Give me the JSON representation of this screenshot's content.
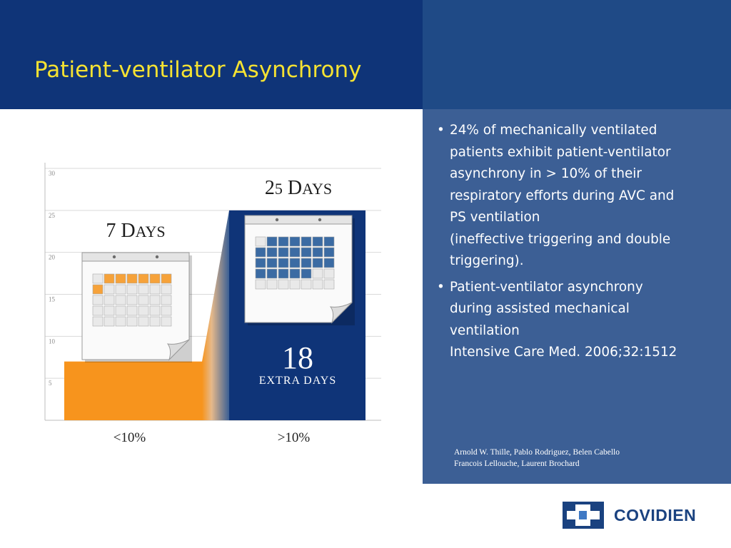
{
  "slide": {
    "title": "Patient-ventilator Asynchrony"
  },
  "bullets": [
    {
      "lines": [
        "24% of mechanically ventilated",
        "patients exhibit patient-ventilator",
        "asynchrony in > 10% of their",
        "respiratory efforts during AVC and",
        "PS ventilation",
        "(ineffective triggering and double",
        "triggering)."
      ]
    },
    {
      "lines": [
        "Patient-ventilator asynchrony",
        "during assisted mechanical",
        "ventilation",
        "Intensive Care Med. 2006;32:1512"
      ]
    }
  ],
  "citation": {
    "line1": "Arnold W. Thille, Pablo Rodriguez, Belen Cabello",
    "line2": "Francois Lellouche, Laurent Brochard"
  },
  "logo": {
    "text": "COVIDIEN",
    "icon": "covidien-cross-icon"
  },
  "colors": {
    "header": "#0f3478",
    "sidebar": "#3c5f95",
    "title": "#f5e232",
    "bar_low": "#f7941d",
    "bar_high": "#0f3478",
    "calendar_orange": "#f6a23a",
    "calendar_blue": "#3b6ba3"
  },
  "chart_data": {
    "type": "bar",
    "categories": [
      "<10%",
      ">10%"
    ],
    "values": [
      7,
      25
    ],
    "ylim": [
      0,
      30
    ],
    "yticks": [
      5,
      10,
      15,
      20,
      25,
      30
    ],
    "grid": true,
    "bar_labels": [
      "7 Days",
      "25 Days"
    ],
    "annotation": {
      "value": "18",
      "text": "EXTRA DAYS"
    },
    "calendars": [
      {
        "highlighted_days": 7,
        "icon": "calendar-icon"
      },
      {
        "highlighted_days": 25,
        "icon": "calendar-icon"
      }
    ]
  }
}
